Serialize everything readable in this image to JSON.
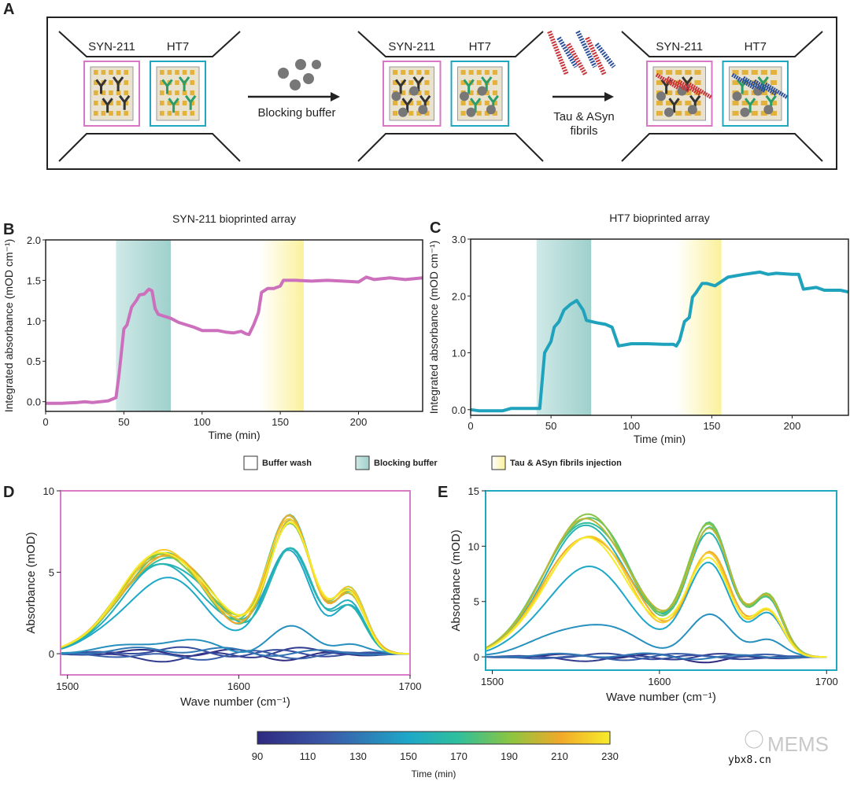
{
  "panel_a": {
    "label": "A",
    "antibody_left": "SYN-211",
    "antibody_right": "HT7",
    "step1": "Blocking buffer",
    "step2_line1": "Tau & ASyn",
    "step2_line2": "fibrils",
    "colors": {
      "syn": "#d977c4",
      "ht7": "#1fa8c0"
    }
  },
  "legend": {
    "items": [
      {
        "label": "Buffer wash",
        "color": "#ffffff"
      },
      {
        "label": "Blocking buffer",
        "color": "#a9d8d4"
      },
      {
        "label": "Tau & ASyn fibrils injection",
        "color": "#fbf2a8"
      }
    ]
  },
  "colorbar": {
    "ticks": [
      "90",
      "110",
      "130",
      "150",
      "170",
      "190",
      "210",
      "230"
    ],
    "label": "Time (min)",
    "range": [
      90,
      230
    ]
  },
  "watermark": {
    "brand": "MEMS",
    "site": "ybx8.cn"
  },
  "chart_data": [
    {
      "panel": "B",
      "type": "line",
      "title": "SYN-211 bioprinted array",
      "xlabel": "Time (min)",
      "ylabel": "Integrated absorbance (mOD cm⁻¹)",
      "xlim": [
        0,
        241
      ],
      "ylim": [
        -0.12,
        2.0
      ],
      "xticks": [
        "0",
        "50",
        "100",
        "150",
        "200"
      ],
      "yticks": [
        "0.0",
        "0.5",
        "1.0",
        "1.5",
        "2.0"
      ],
      "color": "#cc6fbd",
      "shaded": [
        {
          "kind": "Blocking buffer",
          "from": 45,
          "to": 80
        },
        {
          "kind": "Tau & ASyn fibrils injection",
          "from": 137,
          "to": 165
        }
      ],
      "x": [
        0,
        10,
        20,
        25,
        30,
        40,
        45,
        47,
        50,
        52,
        55,
        58,
        60,
        63,
        66,
        68,
        70,
        72,
        80,
        85,
        90,
        95,
        100,
        110,
        115,
        120,
        125,
        128,
        130,
        133,
        136,
        138,
        142,
        146,
        150,
        152,
        160,
        170,
        180,
        190,
        200,
        205,
        210,
        220,
        230,
        241
      ],
      "y": [
        -0.02,
        -0.02,
        -0.01,
        0,
        -0.01,
        0.01,
        0.05,
        0.35,
        0.9,
        0.95,
        1.17,
        1.25,
        1.32,
        1.33,
        1.39,
        1.37,
        1.15,
        1.08,
        1.03,
        0.98,
        0.95,
        0.92,
        0.88,
        0.88,
        0.86,
        0.85,
        0.87,
        0.84,
        0.83,
        0.95,
        1.1,
        1.35,
        1.4,
        1.4,
        1.43,
        1.5,
        1.5,
        1.49,
        1.5,
        1.49,
        1.48,
        1.54,
        1.51,
        1.53,
        1.51,
        1.53
      ]
    },
    {
      "panel": "C",
      "type": "line",
      "title": "HT7 bioprinted array",
      "xlabel": "Time (min)",
      "ylabel": "Integrated absorbance (mOD cm⁻¹)",
      "xlim": [
        0,
        235
      ],
      "ylim": [
        -0.1,
        3.0
      ],
      "xticks": [
        "0",
        "50",
        "100",
        "150",
        "200"
      ],
      "yticks": [
        "0.0",
        "1.0",
        "2.0",
        "3.0"
      ],
      "color": "#1fa3bd",
      "shaded": [
        {
          "kind": "Blocking buffer",
          "from": 41,
          "to": 75
        },
        {
          "kind": "Tau & ASyn fibrils injection",
          "from": 128,
          "to": 156
        }
      ],
      "x": [
        0,
        5,
        20,
        25,
        43,
        46,
        50,
        52,
        55,
        58,
        62,
        66,
        70,
        72,
        78,
        84,
        88,
        92,
        100,
        110,
        120,
        126,
        128,
        130,
        133,
        136,
        138,
        140,
        144,
        147,
        152,
        160,
        170,
        180,
        185,
        190,
        200,
        204,
        207,
        215,
        220,
        230,
        235
      ],
      "y": [
        0,
        -0.02,
        -0.02,
        0.02,
        0.02,
        1.0,
        1.2,
        1.45,
        1.55,
        1.75,
        1.85,
        1.92,
        1.75,
        1.57,
        1.53,
        1.5,
        1.45,
        1.12,
        1.16,
        1.16,
        1.15,
        1.15,
        1.12,
        1.22,
        1.55,
        1.62,
        1.98,
        2.05,
        2.22,
        2.22,
        2.18,
        2.33,
        2.38,
        2.42,
        2.38,
        2.4,
        2.38,
        2.38,
        2.12,
        2.15,
        2.1,
        2.1,
        2.07
      ]
    },
    {
      "panel": "D",
      "type": "line",
      "title": "",
      "xlabel": "Wave number (cm⁻¹)",
      "ylabel": "Absorbance (mOD)",
      "xlim": [
        1496,
        1700
      ],
      "ylim": [
        -1.3,
        10
      ],
      "xticks": [
        "1500",
        "1600",
        "1700"
      ],
      "yticks": [
        "0",
        "5",
        "10"
      ],
      "frame_color": "#d77cc6",
      "series": [
        {
          "time": 90,
          "amide_1557": 0.1,
          "amide_1630": -0.2
        },
        {
          "time": 100,
          "amide_1557": -0.3,
          "amide_1630": 0.2
        },
        {
          "time": 110,
          "amide_1557": 0.2,
          "amide_1630": 0.0
        },
        {
          "time": 120,
          "amide_1557": -0.2,
          "amide_1630": -0.1
        },
        {
          "time": 130,
          "amide_1557": 0.3,
          "amide_1630": 0.1
        },
        {
          "time": 140,
          "amide_1557": 0.8,
          "amide_1630": 1.5
        },
        {
          "time": 150,
          "amide_1557": 4.5,
          "amide_1630": 6.2
        },
        {
          "time": 155,
          "amide_1557": 5.4,
          "amide_1630": 6.6
        },
        {
          "time": 160,
          "amide_1557": 5.7,
          "amide_1630": 6.4
        },
        {
          "time": 170,
          "amide_1557": 5.9,
          "amide_1630": 8.2
        },
        {
          "time": 180,
          "amide_1557": 6.0,
          "amide_1630": 8.4
        },
        {
          "time": 190,
          "amide_1557": 6.1,
          "amide_1630": 8.1
        },
        {
          "time": 200,
          "amide_1557": 6.2,
          "amide_1630": 8.0
        },
        {
          "time": 210,
          "amide_1557": 6.0,
          "amide_1630": 8.2
        },
        {
          "time": 220,
          "amide_1557": 6.2,
          "amide_1630": 8.3
        },
        {
          "time": 230,
          "amide_1557": 6.3,
          "amide_1630": 8.1
        }
      ]
    },
    {
      "panel": "E",
      "type": "line",
      "title": "",
      "xlabel": "Wave number (cm⁻¹)",
      "ylabel": "Absorbance (mOD)",
      "xlim": [
        1496,
        1706
      ],
      "ylim": [
        -1.2,
        15
      ],
      "xticks": [
        "1500",
        "1600",
        "1700"
      ],
      "yticks": [
        "0",
        "5",
        "10",
        "15"
      ],
      "frame_color": "#1fa8c0",
      "series": [
        {
          "time": 90,
          "amide_1557": 0.1,
          "amide_1630": -0.3
        },
        {
          "time": 100,
          "amide_1557": -0.2,
          "amide_1630": 0.1
        },
        {
          "time": 110,
          "amide_1557": 0.1,
          "amide_1630": -0.1
        },
        {
          "time": 120,
          "amide_1557": -0.1,
          "amide_1630": 0.2
        },
        {
          "time": 130,
          "amide_1557": 0.2,
          "amide_1630": 0.0
        },
        {
          "time": 140,
          "amide_1557": 3.0,
          "amide_1630": 3.6
        },
        {
          "time": 150,
          "amide_1557": 8.0,
          "amide_1630": 8.3
        },
        {
          "time": 160,
          "amide_1557": 11.8,
          "amide_1630": 11.2
        },
        {
          "time": 170,
          "amide_1557": 12.3,
          "amide_1630": 11.5
        },
        {
          "time": 180,
          "amide_1557": 12.6,
          "amide_1630": 11.7
        },
        {
          "time": 190,
          "amide_1557": 12.7,
          "amide_1630": 11.8
        },
        {
          "time": 200,
          "amide_1557": 12.5,
          "amide_1630": 11.6
        },
        {
          "time": 210,
          "amide_1557": 11.0,
          "amide_1630": 9.2
        },
        {
          "time": 220,
          "amide_1557": 10.8,
          "amide_1630": 9.0
        },
        {
          "time": 230,
          "amide_1557": 10.6,
          "amide_1630": 8.9
        }
      ]
    }
  ]
}
